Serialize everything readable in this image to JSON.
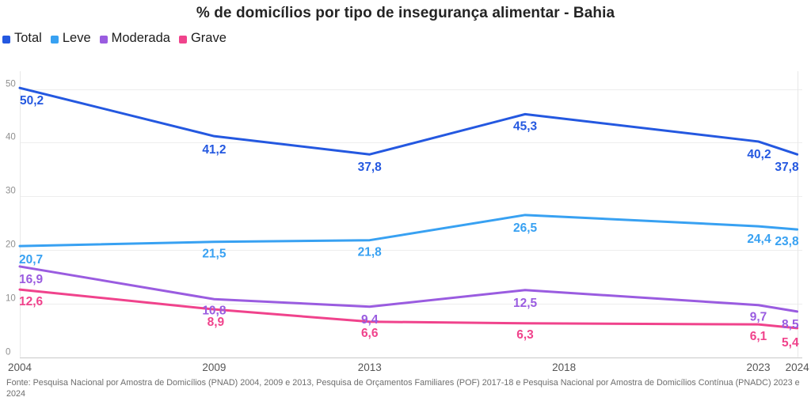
{
  "title": "% de domicílios por tipo de insegurança alimentar - Bahia",
  "legend": [
    {
      "label": "Total",
      "color": "#2458E0"
    },
    {
      "label": "Leve",
      "color": "#38A1F2"
    },
    {
      "label": "Moderada",
      "color": "#9A5CE0"
    },
    {
      "label": "Grave",
      "color": "#F0438C"
    }
  ],
  "footer": "Fonte: Pesquisa Nacional por Amostra de Domicílios (PNAD) 2004, 2009 e 2013, Pesquisa de Orçamentos Familiares (POF) 2017-18 e Pesquisa Nacional por Amostra de Domicílios Contínua (PNADC) 2023 e 2024",
  "chart_data": {
    "type": "line",
    "title": "% de domicílios por tipo de insegurança alimentar - Bahia",
    "xlabel": "",
    "ylabel": "",
    "grid": true,
    "legend_position": "top-left",
    "decimal_separator": ",",
    "x": [
      2004,
      2009,
      2013,
      2017,
      2023,
      2024
    ],
    "x_tick_years": [
      2004,
      2009,
      2013,
      2018,
      2023,
      2024
    ],
    "x_tick_labels": [
      "2004",
      "2009",
      "2013",
      "2018",
      "2023",
      "2024"
    ],
    "xlim": [
      2004,
      2024
    ],
    "y_ticks": [
      0,
      10,
      20,
      30,
      40,
      50
    ],
    "ylim": [
      0,
      52
    ],
    "series": [
      {
        "name": "Total",
        "color": "#2458E0",
        "values": [
          50.2,
          41.2,
          37.8,
          45.3,
          40.2,
          37.8
        ]
      },
      {
        "name": "Leve",
        "color": "#38A1F2",
        "values": [
          20.7,
          21.5,
          21.8,
          26.5,
          24.4,
          23.8
        ]
      },
      {
        "name": "Moderada",
        "color": "#9A5CE0",
        "values": [
          16.9,
          10.8,
          9.4,
          12.5,
          9.7,
          8.5
        ]
      },
      {
        "name": "Grave",
        "color": "#F0438C",
        "values": [
          12.6,
          8.9,
          6.6,
          6.3,
          6.1,
          5.4
        ]
      }
    ]
  }
}
